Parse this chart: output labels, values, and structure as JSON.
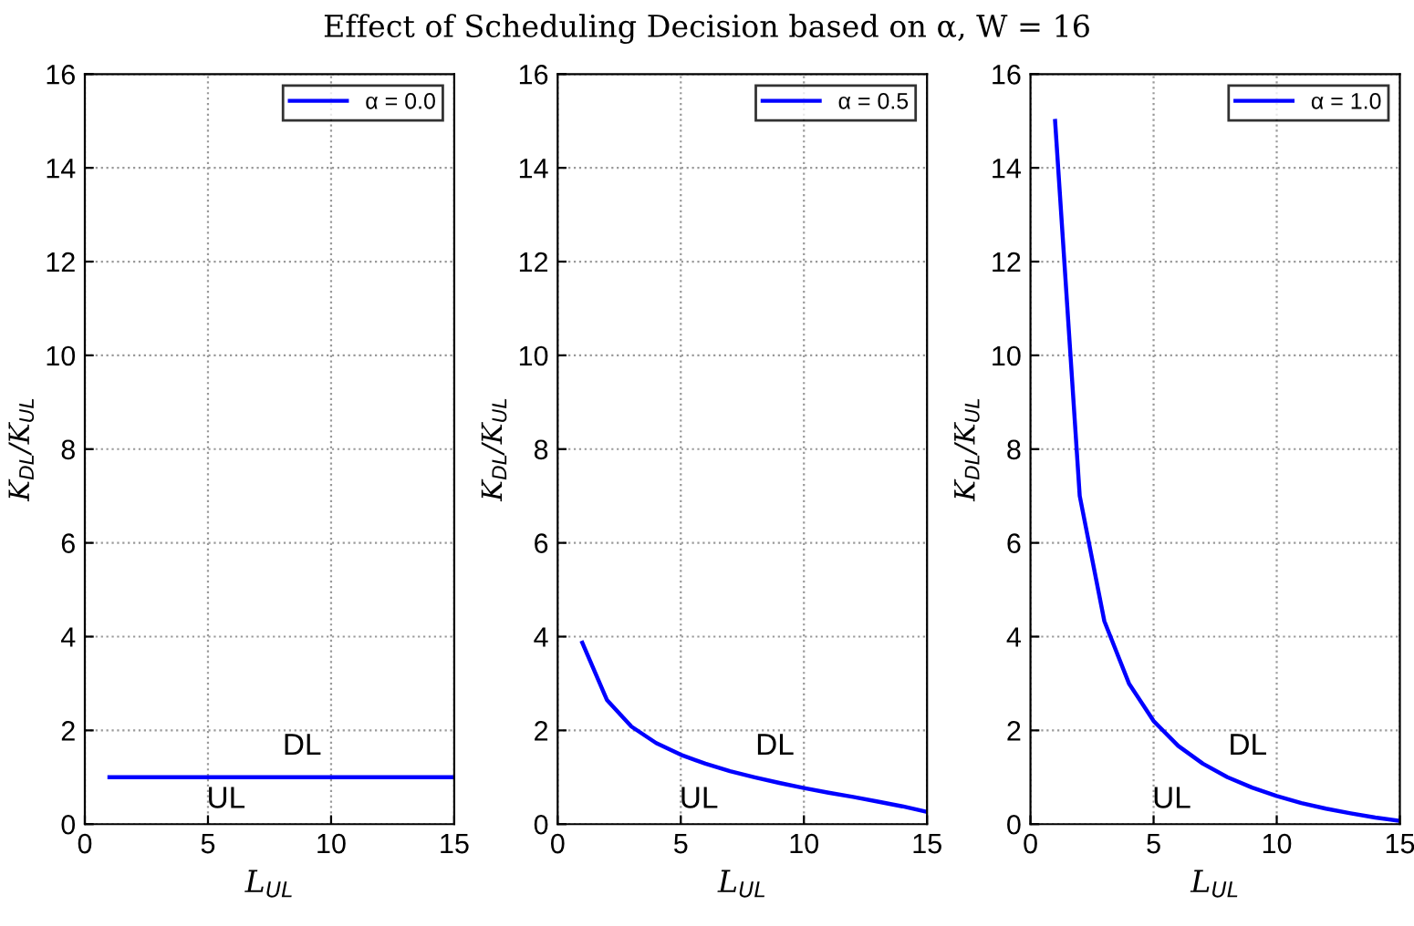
{
  "chart_data": [
    {
      "type": "line",
      "title": "Effect of Scheduling Decision based on α, W = 16",
      "xlabel": "L$_{UL}$",
      "ylabel": "K$_{DL}$/K$_{UL}$",
      "x": [
        1,
        2,
        3,
        4,
        5,
        6,
        7,
        8,
        9,
        10,
        11,
        12,
        13,
        14,
        15
      ],
      "series": [
        {
          "name": "α = 0.0",
          "color": "#0000ff",
          "values": [
            1,
            1,
            1,
            1,
            1,
            1,
            1,
            1,
            1,
            1,
            1,
            1,
            1,
            1,
            1
          ]
        }
      ],
      "annotations": [
        "DL",
        "UL"
      ],
      "xlim": [
        0,
        15
      ],
      "xticks": [
        0,
        5,
        10,
        15
      ],
      "ylim": [
        0,
        16
      ],
      "yticks": [
        0,
        2,
        4,
        6,
        8,
        10,
        12,
        14,
        16
      ],
      "grid": true,
      "legend": "top right",
      "line_style": "solid"
    },
    {
      "type": "line",
      "xlabel": "L$_{UL}$",
      "ylabel": "K$_{DL}$/K$_{UL}$",
      "x": [
        1,
        2,
        3,
        4,
        5,
        6,
        7,
        8,
        9,
        10,
        11,
        12,
        13,
        14,
        15
      ],
      "series": [
        {
          "name": "α = 0.5",
          "color": "#0000ff",
          "values": [
            3.87,
            2.65,
            2.08,
            1.73,
            1.48,
            1.29,
            1.13,
            1.0,
            0.88,
            0.77,
            0.67,
            0.58,
            0.48,
            0.38,
            0.26
          ]
        }
      ],
      "annotations": [
        "DL",
        "UL"
      ],
      "xlim": [
        0,
        15
      ],
      "xticks": [
        0,
        5,
        10,
        15
      ],
      "ylim": [
        0,
        16
      ],
      "yticks": [
        0,
        2,
        4,
        6,
        8,
        10,
        12,
        14,
        16
      ],
      "grid": true,
      "legend": "top right",
      "line_style": "solid"
    },
    {
      "type": "line",
      "xlabel": "L$_{UL}$",
      "ylabel": "K$_{DL}$/K$_{UL}$",
      "x": [
        1,
        2,
        3,
        4,
        5,
        6,
        7,
        8,
        9,
        10,
        11,
        12,
        13,
        14,
        15
      ],
      "series": [
        {
          "name": "α = 1.0",
          "color": "#0000ff",
          "values": [
            15,
            7,
            4.33,
            3,
            2.2,
            1.67,
            1.29,
            1.0,
            0.78,
            0.6,
            0.45,
            0.33,
            0.23,
            0.14,
            0.07
          ]
        }
      ],
      "annotations": [
        "DL",
        "UL"
      ],
      "xlim": [
        0,
        15
      ],
      "xticks": [
        0,
        5,
        10,
        15
      ],
      "ylim": [
        0,
        16
      ],
      "yticks": [
        0,
        2,
        4,
        6,
        8,
        10,
        12,
        14,
        16
      ],
      "grid": true,
      "legend": "top right",
      "line_style": "solid"
    }
  ]
}
